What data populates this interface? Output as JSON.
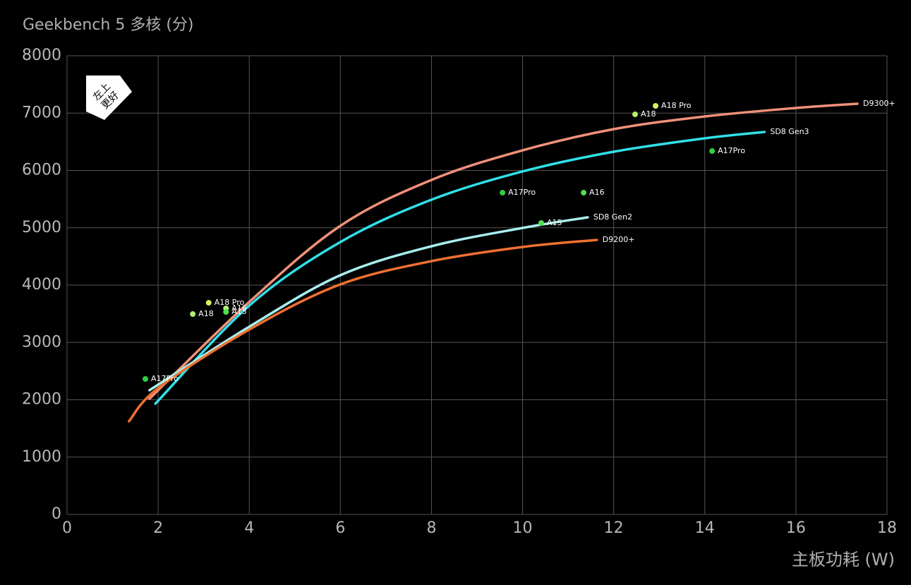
{
  "chart_data": {
    "type": "line",
    "title": "Geekbench 5 多核 (分)",
    "x_label": "主板功耗 (W)",
    "annotation": [
      "左上",
      "更好"
    ],
    "xlim": [
      0,
      18
    ],
    "xticks": [
      0,
      2,
      4,
      6,
      8,
      10,
      12,
      14,
      16,
      18
    ],
    "ylim": [
      0,
      8000
    ],
    "yticks": [
      0,
      1000,
      2000,
      3000,
      4000,
      5000,
      6000,
      7000,
      8000
    ],
    "grid": true,
    "series": [
      {
        "name": "D9300+",
        "color": "#f0907a",
        "x": [
          1.81,
          4,
          6,
          8,
          10,
          12,
          14,
          16,
          17.35
        ],
        "values": [
          2018,
          3705,
          5034,
          5834,
          6350,
          6720,
          6941,
          7089,
          7163
        ]
      },
      {
        "name": "SD8 Gen3",
        "color": "#30e0e8",
        "x": [
          1.94,
          4,
          6,
          8,
          10,
          12,
          14,
          15.31
        ],
        "values": [
          1932,
          3643,
          4751,
          5489,
          5982,
          6326,
          6560,
          6671
        ]
      },
      {
        "name": "SD8 Gen2",
        "color": "#a8eeee",
        "x": [
          1.81,
          4,
          6,
          8,
          10,
          11.43
        ],
        "values": [
          2166,
          3274,
          4172,
          4677,
          4997,
          5182
        ]
      },
      {
        "name": "D9200+",
        "color": "#f07030",
        "x": [
          1.36,
          2,
          4,
          6,
          8,
          10,
          11.63
        ],
        "values": [
          1625,
          2203,
          3225,
          4012,
          4418,
          4665,
          4788
        ]
      }
    ],
    "points": [
      {
        "label": "A17Pro",
        "x": 1.72,
        "y": 2363,
        "color": "#30d040"
      },
      {
        "label": "A18",
        "x": 2.76,
        "y": 3495,
        "color": "#b0f070"
      },
      {
        "label": "A18 Pro",
        "x": 3.11,
        "y": 3692,
        "color": "#d8f060"
      },
      {
        "label": "A16",
        "x": 3.49,
        "y": 3594,
        "color": "#b0f070"
      },
      {
        "label": "A15",
        "x": 3.49,
        "y": 3532,
        "color": "#50e050"
      },
      {
        "label": "A18 Pro",
        "x": 12.92,
        "y": 7126,
        "color": "#d8f060"
      },
      {
        "label": "A18",
        "x": 12.47,
        "y": 6978,
        "color": "#b0f070"
      },
      {
        "label": "A17Pro",
        "x": 14.16,
        "y": 6338,
        "color": "#30d040"
      },
      {
        "label": "A17Pro",
        "x": 9.56,
        "y": 5612,
        "color": "#30d040"
      },
      {
        "label": "A16",
        "x": 11.34,
        "y": 5612,
        "color": "#50e050"
      },
      {
        "label": "A15",
        "x": 10.41,
        "y": 5083,
        "color": "#50e050"
      }
    ]
  }
}
